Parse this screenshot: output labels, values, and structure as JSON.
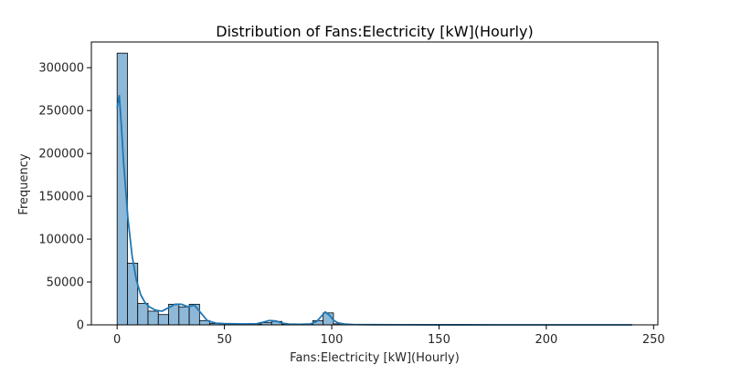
{
  "chart_data": {
    "type": "bar",
    "title": "Distribution of Fans:Electricity [kW](Hourly)",
    "xlabel": "Fans:Electricity [kW](Hourly)",
    "ylabel": "Frequency",
    "xlim": [
      -12,
      252
    ],
    "ylim": [
      0,
      330000
    ],
    "xticks": [
      0,
      50,
      100,
      150,
      200,
      250
    ],
    "yticks": [
      0,
      50000,
      100000,
      150000,
      200000,
      250000,
      300000
    ],
    "grid": false,
    "bin_width": 4.8,
    "bins": [
      {
        "x0": 0.0,
        "x1": 4.8,
        "count": 317000
      },
      {
        "x0": 4.8,
        "x1": 9.6,
        "count": 72000
      },
      {
        "x0": 9.6,
        "x1": 14.4,
        "count": 25000
      },
      {
        "x0": 14.4,
        "x1": 19.2,
        "count": 16000
      },
      {
        "x0": 19.2,
        "x1": 24.0,
        "count": 12000
      },
      {
        "x0": 24.0,
        "x1": 28.8,
        "count": 24000
      },
      {
        "x0": 28.8,
        "x1": 33.6,
        "count": 21000
      },
      {
        "x0": 33.6,
        "x1": 38.4,
        "count": 24000
      },
      {
        "x0": 38.4,
        "x1": 43.2,
        "count": 5000
      },
      {
        "x0": 43.2,
        "x1": 48.0,
        "count": 1500
      },
      {
        "x0": 48.0,
        "x1": 52.8,
        "count": 1500
      },
      {
        "x0": 52.8,
        "x1": 57.6,
        "count": 1200
      },
      {
        "x0": 57.6,
        "x1": 62.4,
        "count": 1000
      },
      {
        "x0": 62.4,
        "x1": 67.2,
        "count": 1000
      },
      {
        "x0": 67.2,
        "x1": 72.0,
        "count": 2500
      },
      {
        "x0": 72.0,
        "x1": 76.8,
        "count": 4000
      },
      {
        "x0": 76.8,
        "x1": 81.6,
        "count": 800
      },
      {
        "x0": 81.6,
        "x1": 86.4,
        "count": 600
      },
      {
        "x0": 86.4,
        "x1": 91.2,
        "count": 700
      },
      {
        "x0": 91.2,
        "x1": 96.0,
        "count": 5000
      },
      {
        "x0": 96.0,
        "x1": 100.8,
        "count": 14000
      },
      {
        "x0": 100.8,
        "x1": 105.6,
        "count": 1200
      },
      {
        "x0": 105.6,
        "x1": 110.4,
        "count": 400
      },
      {
        "x0": 110.4,
        "x1": 115.2,
        "count": 200
      },
      {
        "x0": 115.2,
        "x1": 120.0,
        "count": 150
      }
    ],
    "kde": {
      "x": [
        0,
        1,
        2,
        3,
        5,
        7,
        9,
        11,
        13,
        15,
        18,
        21,
        24,
        27,
        30,
        33,
        36,
        39,
        42,
        46,
        50,
        55,
        60,
        65,
        68,
        71,
        74,
        77,
        80,
        85,
        90,
        93,
        95,
        97,
        99,
        101,
        103,
        106,
        110,
        120,
        130,
        150,
        175,
        200,
        225,
        240
      ],
      "y": [
        253000,
        268000,
        232000,
        190000,
        125000,
        80000,
        52000,
        35000,
        26000,
        21000,
        17000,
        16000,
        20000,
        24000,
        24000,
        21000,
        23000,
        14000,
        5000,
        2000,
        1500,
        1200,
        1000,
        1300,
        3000,
        5000,
        4500,
        2000,
        900,
        700,
        1000,
        4000,
        9500,
        15000,
        11000,
        5000,
        2200,
        900,
        400,
        200,
        100,
        50,
        30,
        20,
        10,
        5
      ]
    },
    "colors": {
      "bar_fill": "#8db8d8",
      "bar_edge": "#000000",
      "kde_line": "#1f77b4"
    }
  }
}
